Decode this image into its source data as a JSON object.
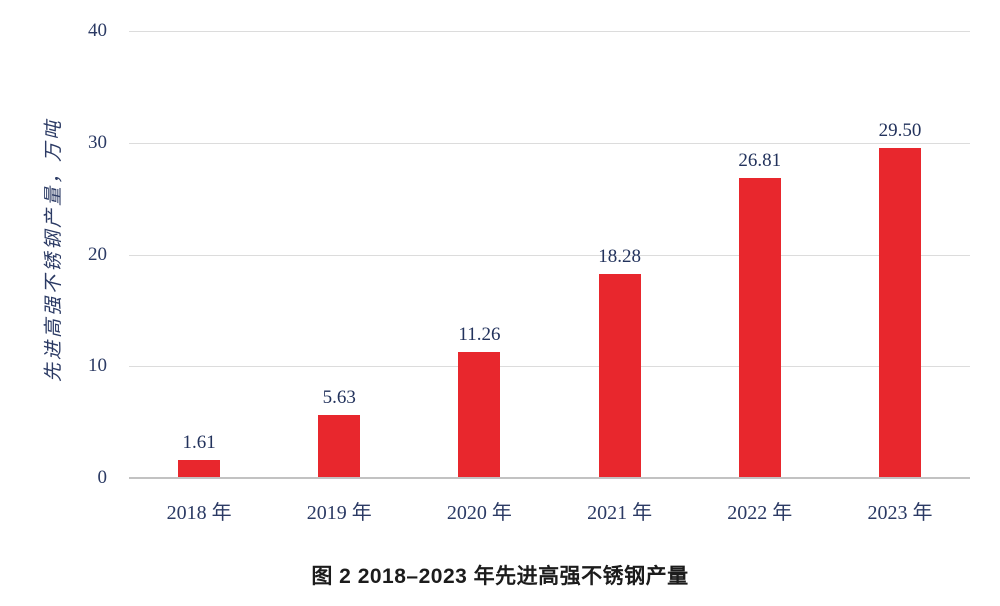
{
  "chart_data": {
    "type": "bar",
    "categories": [
      "2018 年",
      "2019 年",
      "2020 年",
      "2021 年",
      "2022 年",
      "2023 年"
    ],
    "values": [
      1.61,
      5.63,
      11.26,
      18.28,
      26.81,
      29.5
    ],
    "value_labels": [
      "1.61",
      "5.63",
      "11.26",
      "18.28",
      "26.81",
      "29.50"
    ],
    "title": "图 2  2018–2023 年先进高强不锈钢产量",
    "xlabel": "",
    "ylabel": "先进高强不锈钢产量，万吨",
    "yticks": [
      "40",
      "30",
      "20",
      "10",
      "0"
    ],
    "ylim": [
      0,
      40
    ],
    "grid": "horizontal",
    "legend": "none",
    "bar_color": "#e8272d"
  },
  "caption": "图 2  2018–2023 年先进高强不锈钢产量"
}
